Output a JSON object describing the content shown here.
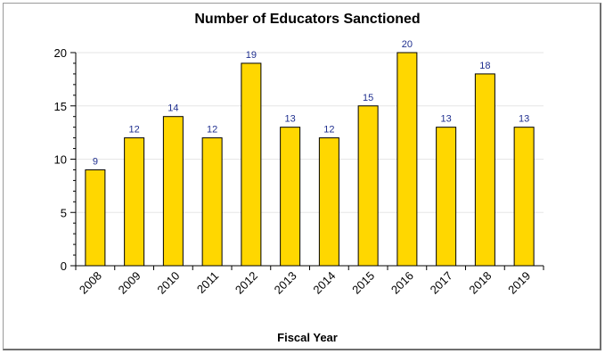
{
  "chart_data": {
    "type": "bar",
    "title": "Number of Educators Sanctioned",
    "xlabel": "Fiscal Year",
    "ylabel": "",
    "categories": [
      "2008",
      "2009",
      "2010",
      "2011",
      "2012",
      "2013",
      "2014",
      "2015",
      "2016",
      "2017",
      "2018",
      "2019"
    ],
    "values": [
      9,
      12,
      14,
      12,
      19,
      13,
      12,
      15,
      20,
      13,
      18,
      13
    ],
    "ylim": [
      0,
      20
    ],
    "yticks": [
      "0",
      "5",
      "10",
      "15",
      "20"
    ],
    "grid": true,
    "legend": "none",
    "data_labels": true,
    "colors": {
      "bar_fill": "#FFD700",
      "bar_stroke": "#000000",
      "data_label": "#1f2f8f",
      "grid": "#e6e6e6"
    }
  }
}
